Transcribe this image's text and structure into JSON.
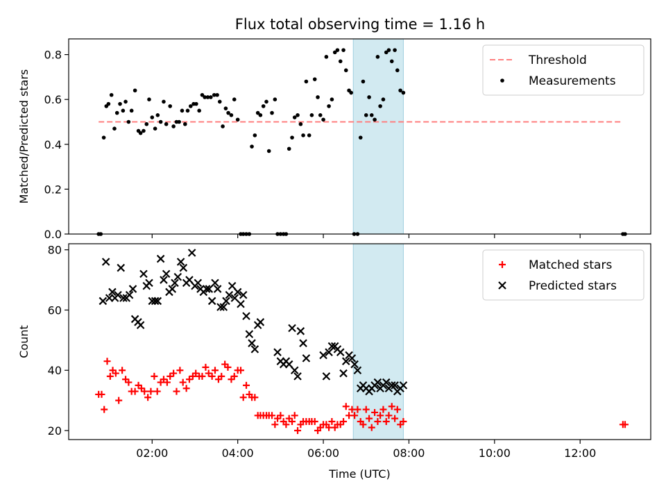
{
  "chart_data": [
    {
      "type": "scatter",
      "title": "Flux total observing time = 1.16 h",
      "xlabel": "",
      "ylabel": "Matched/Predicted stars",
      "xlim": [
        0.05,
        13.65
      ],
      "ylim": [
        0.0,
        0.87
      ],
      "yticks": [
        0.0,
        0.2,
        0.4,
        0.6,
        0.8
      ],
      "ytick_labels": [
        "0.0",
        "0.2",
        "0.4",
        "0.6",
        "0.8"
      ],
      "xticks": [
        2,
        4,
        6,
        8,
        10,
        12
      ],
      "xtick_labels": [
        "",
        "",
        "",
        "",
        "",
        ""
      ],
      "legend_position": "top-right",
      "grid": false,
      "highlight_span": {
        "x": [
          6.7,
          7.87
        ],
        "color": "#add8e6"
      },
      "threshold": {
        "name": "Threshold",
        "value": 0.5,
        "x": [
          0.75,
          13.0
        ],
        "color": "#ff7f7f",
        "style": "dashed"
      },
      "series": [
        {
          "name": "Measurements",
          "marker": "dot",
          "color": "#000000",
          "x": [
            0.75,
            0.8,
            0.87,
            0.93,
            0.98,
            1.05,
            1.12,
            1.18,
            1.25,
            1.32,
            1.38,
            1.45,
            1.52,
            1.6,
            1.68,
            1.73,
            1.8,
            1.87,
            1.93,
            2.0,
            2.07,
            2.13,
            2.2,
            2.27,
            2.33,
            2.42,
            2.5,
            2.57,
            2.63,
            2.7,
            2.77,
            2.83,
            2.9,
            2.97,
            3.03,
            3.1,
            3.17,
            3.23,
            3.3,
            3.37,
            3.45,
            3.52,
            3.58,
            3.65,
            3.72,
            3.78,
            3.85,
            3.92,
            4.0,
            4.07,
            4.13,
            4.2,
            4.27,
            4.33,
            4.4,
            4.47,
            4.53,
            4.6,
            4.67,
            4.73,
            4.8,
            4.87,
            4.93,
            5.0,
            5.07,
            5.13,
            5.2,
            5.27,
            5.33,
            5.4,
            5.47,
            5.53,
            5.6,
            5.67,
            5.73,
            5.8,
            5.87,
            5.93,
            6.0,
            6.07,
            6.13,
            6.2,
            6.27,
            6.33,
            6.4,
            6.47,
            6.53,
            6.6,
            6.65,
            6.72,
            6.8,
            6.87,
            6.93,
            7.0,
            7.07,
            7.13,
            7.2,
            7.27,
            7.33,
            7.4,
            7.47,
            7.53,
            7.6,
            7.67,
            7.73,
            7.8,
            7.87,
            13.0,
            13.05
          ],
          "y": [
            0.0,
            0.0,
            0.43,
            0.57,
            0.58,
            0.62,
            0.47,
            0.54,
            0.58,
            0.55,
            0.59,
            0.5,
            0.55,
            0.64,
            0.46,
            0.45,
            0.46,
            0.49,
            0.6,
            0.52,
            0.47,
            0.53,
            0.5,
            0.59,
            0.49,
            0.57,
            0.48,
            0.5,
            0.5,
            0.55,
            0.49,
            0.55,
            0.57,
            0.58,
            0.58,
            0.55,
            0.62,
            0.61,
            0.61,
            0.61,
            0.62,
            0.62,
            0.59,
            0.48,
            0.56,
            0.54,
            0.53,
            0.6,
            0.51,
            0.0,
            0.0,
            0.0,
            0.0,
            0.39,
            0.44,
            0.54,
            0.53,
            0.57,
            0.59,
            0.37,
            0.54,
            0.6,
            0.0,
            0.0,
            0.0,
            0.0,
            0.38,
            0.43,
            0.52,
            0.53,
            0.49,
            0.44,
            0.68,
            0.44,
            0.53,
            0.69,
            0.61,
            0.53,
            0.51,
            0.79,
            0.57,
            0.6,
            0.81,
            0.82,
            0.77,
            0.82,
            0.73,
            0.64,
            0.63,
            0.0,
            0.0,
            0.43,
            0.68,
            0.53,
            0.61,
            0.53,
            0.51,
            0.79,
            0.57,
            0.6,
            0.81,
            0.82,
            0.77,
            0.82,
            0.73,
            0.64,
            0.63,
            0.0,
            0.0
          ]
        }
      ]
    },
    {
      "type": "scatter",
      "title": "",
      "xlabel": "Time (UTC)",
      "ylabel": "Count",
      "xlim": [
        0.05,
        13.65
      ],
      "ylim": [
        17,
        82
      ],
      "yticks": [
        20,
        40,
        60,
        80
      ],
      "ytick_labels": [
        "20",
        "40",
        "60",
        "80"
      ],
      "xticks": [
        2,
        4,
        6,
        8,
        10,
        12
      ],
      "xtick_labels": [
        "02:00",
        "04:00",
        "06:00",
        "08:00",
        "10:00",
        "12:00"
      ],
      "legend_position": "top-right",
      "grid": false,
      "highlight_span": {
        "x": [
          6.7,
          7.87
        ],
        "color": "#add8e6"
      },
      "series": [
        {
          "name": "Matched stars",
          "marker": "plus",
          "color": "#ff0000",
          "x": [
            0.75,
            0.82,
            0.88,
            0.95,
            1.02,
            1.08,
            1.15,
            1.22,
            1.3,
            1.38,
            1.45,
            1.52,
            1.6,
            1.68,
            1.75,
            1.82,
            1.9,
            1.97,
            2.05,
            2.12,
            2.2,
            2.27,
            2.35,
            2.42,
            2.5,
            2.57,
            2.65,
            2.72,
            2.8,
            2.87,
            2.95,
            3.02,
            3.1,
            3.17,
            3.25,
            3.32,
            3.4,
            3.47,
            3.55,
            3.62,
            3.7,
            3.77,
            3.85,
            3.92,
            4.0,
            4.07,
            4.13,
            4.2,
            4.27,
            4.33,
            4.4,
            4.47,
            4.53,
            4.6,
            4.67,
            4.73,
            4.8,
            4.87,
            4.93,
            5.0,
            5.07,
            5.13,
            5.2,
            5.27,
            5.33,
            5.4,
            5.47,
            5.53,
            5.6,
            5.67,
            5.73,
            5.8,
            5.87,
            5.93,
            6.0,
            6.07,
            6.13,
            6.2,
            6.27,
            6.33,
            6.4,
            6.47,
            6.53,
            6.6,
            6.67,
            6.73,
            6.8,
            6.87,
            6.93,
            7.0,
            7.07,
            7.13,
            7.2,
            7.27,
            7.33,
            7.4,
            7.47,
            7.53,
            7.6,
            7.67,
            7.73,
            7.8,
            7.87,
            13.0,
            13.05
          ],
          "y": [
            32,
            32,
            27,
            43,
            38,
            40,
            39,
            30,
            40,
            37,
            36,
            33,
            33,
            35,
            34,
            33,
            31,
            33,
            38,
            33,
            36,
            37,
            36,
            38,
            39,
            33,
            40,
            36,
            34,
            37,
            38,
            39,
            38,
            38,
            41,
            39,
            38,
            40,
            37,
            38,
            42,
            41,
            37,
            38,
            40,
            40,
            31,
            35,
            32,
            31,
            31,
            25,
            25,
            25,
            25,
            25,
            25,
            22,
            24,
            25,
            23,
            22,
            24,
            23,
            25,
            20,
            22,
            23,
            23,
            23,
            23,
            23,
            20,
            21,
            22,
            22,
            21,
            23,
            21,
            22,
            22,
            23,
            28,
            25,
            27,
            25,
            27,
            23,
            22,
            27,
            24,
            21,
            26,
            23,
            25,
            27,
            23,
            25,
            28,
            24,
            27,
            22,
            23,
            22,
            22
          ],
          "__note": ""
        },
        {
          "name": "Predicted stars",
          "marker": "cross",
          "color": "#000000",
          "x": [
            0.85,
            0.92,
            1.0,
            1.07,
            1.13,
            1.2,
            1.27,
            1.33,
            1.4,
            1.47,
            1.55,
            1.6,
            1.67,
            1.73,
            1.8,
            1.87,
            1.93,
            2.0,
            2.07,
            2.13,
            2.2,
            2.27,
            2.33,
            2.4,
            2.47,
            2.53,
            2.6,
            2.67,
            2.73,
            2.8,
            2.87,
            2.93,
            3.0,
            3.07,
            3.13,
            3.2,
            3.27,
            3.33,
            3.4,
            3.47,
            3.53,
            3.6,
            3.67,
            3.73,
            3.8,
            3.87,
            3.93,
            4.0,
            4.07,
            4.13,
            4.2,
            4.27,
            4.33,
            4.4,
            4.47,
            4.53,
            4.93,
            5.0,
            5.07,
            5.13,
            5.2,
            5.27,
            5.33,
            5.4,
            5.47,
            5.53,
            5.6,
            6.0,
            6.07,
            6.13,
            6.2,
            6.27,
            6.33,
            6.4,
            6.47,
            6.53,
            6.6,
            6.67,
            6.73,
            6.8,
            6.87,
            6.93,
            7.0,
            7.07,
            7.13,
            7.2,
            7.27,
            7.33,
            7.4,
            7.47,
            7.53,
            7.6,
            7.67,
            7.73,
            7.8,
            7.87
          ],
          "y": [
            63,
            76,
            64,
            66,
            64,
            65,
            74,
            64,
            64,
            65,
            67,
            57,
            56,
            55,
            72,
            68,
            69,
            63,
            63,
            63,
            77,
            70,
            72,
            66,
            67,
            69,
            71,
            76,
            74,
            69,
            70,
            79,
            68,
            69,
            67,
            66,
            67,
            67,
            63,
            69,
            67,
            61,
            61,
            63,
            65,
            68,
            64,
            66,
            62,
            65,
            58,
            52,
            49,
            47,
            55,
            56,
            46,
            43,
            42,
            43,
            42,
            54,
            40,
            38,
            53,
            49,
            44,
            45,
            38,
            46,
            48,
            48,
            47,
            46,
            39,
            43,
            45,
            44,
            42,
            40,
            34,
            35,
            34,
            33,
            34,
            35,
            36,
            34,
            35,
            36,
            34,
            35,
            35,
            33,
            34,
            35
          ],
          "__note": ""
        }
      ]
    }
  ]
}
